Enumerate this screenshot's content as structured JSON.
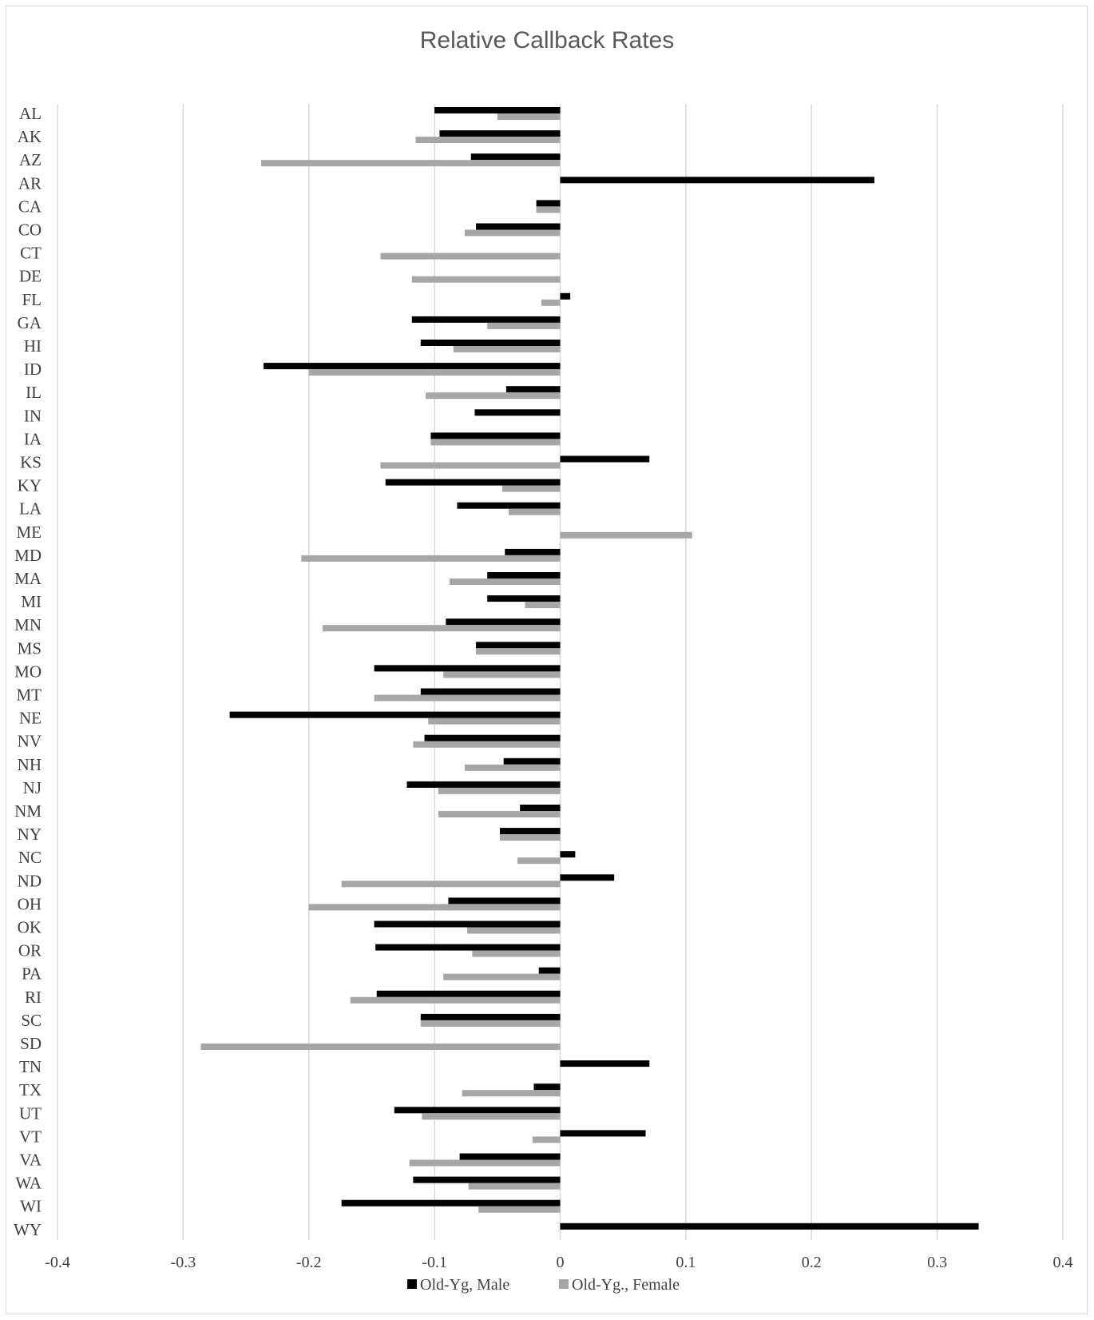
{
  "caption": "",
  "chart_data": {
    "type": "bar",
    "orientation": "horizontal",
    "title": "Relative Callback Rates",
    "xlabel": "",
    "ylabel": "",
    "xlim": [
      -0.4,
      0.4
    ],
    "xticks": [
      "-0.4",
      "-0.3",
      "-0.2",
      "-0.1",
      "0",
      "0.1",
      "0.2",
      "0.3",
      "0.4"
    ],
    "grid": "vertical",
    "legend_position": "bottom",
    "categories": [
      "AL",
      "AK",
      "AZ",
      "AR",
      "CA",
      "CO",
      "CT",
      "DE",
      "FL",
      "GA",
      "HI",
      "ID",
      "IL",
      "IN",
      "IA",
      "KS",
      "KY",
      "LA",
      "ME",
      "MD",
      "MA",
      "MI",
      "MN",
      "MS",
      "MO",
      "MT",
      "NE",
      "NV",
      "NH",
      "NJ",
      "NM",
      "NY",
      "NC",
      "ND",
      "OH",
      "OK",
      "OR",
      "PA",
      "RI",
      "SC",
      "SD",
      "TN",
      "TX",
      "UT",
      "VT",
      "VA",
      "WA",
      "WI",
      "WY"
    ],
    "series": [
      {
        "name": "Old-Yg, Male",
        "color": "#000000",
        "values": [
          -0.1,
          -0.096,
          -0.071,
          0.25,
          -0.019,
          -0.067,
          0,
          0,
          0.008,
          -0.118,
          -0.111,
          -0.236,
          -0.043,
          -0.068,
          -0.103,
          0.071,
          -0.139,
          -0.082,
          0,
          -0.044,
          -0.058,
          -0.058,
          -0.091,
          -0.067,
          -0.148,
          -0.111,
          -0.263,
          -0.108,
          -0.045,
          -0.122,
          -0.032,
          -0.048,
          0.012,
          0.043,
          -0.089,
          -0.148,
          -0.147,
          -0.017,
          -0.146,
          -0.111,
          0,
          0.071,
          -0.021,
          -0.132,
          0.068,
          -0.08,
          -0.117,
          -0.174,
          0.333
        ]
      },
      {
        "name": "Old-Yg., Female",
        "color": "#a6a6a6",
        "values": [
          -0.05,
          -0.115,
          -0.238,
          0,
          -0.019,
          -0.076,
          -0.143,
          -0.118,
          -0.015,
          -0.058,
          -0.085,
          -0.2,
          -0.107,
          0,
          -0.103,
          -0.143,
          -0.046,
          -0.041,
          0.105,
          -0.206,
          -0.088,
          -0.028,
          -0.189,
          -0.067,
          -0.093,
          -0.148,
          -0.105,
          -0.117,
          -0.076,
          -0.097,
          -0.097,
          -0.048,
          -0.034,
          -0.174,
          -0.2,
          -0.074,
          -0.07,
          -0.093,
          -0.167,
          -0.111,
          -0.286,
          0,
          -0.078,
          -0.11,
          -0.022,
          -0.12,
          -0.073,
          -0.065,
          0
        ]
      }
    ]
  }
}
